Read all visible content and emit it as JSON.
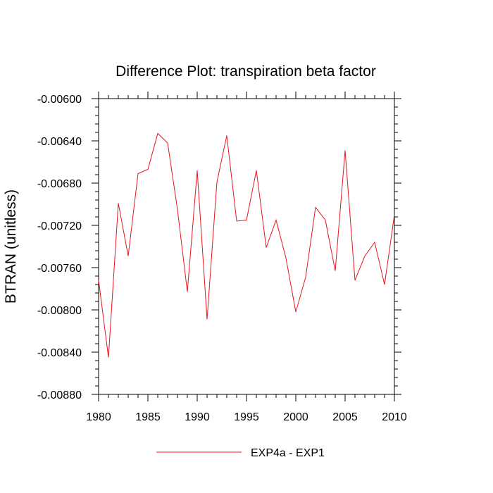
{
  "chart_data": {
    "type": "line",
    "title": "Difference Plot: transpiration beta factor",
    "xlabel": "",
    "ylabel": "BTRAN  (unitless)",
    "xlim": [
      1980,
      2010
    ],
    "ylim": [
      -0.0088,
      -0.006
    ],
    "x_ticks": [
      1980,
      1985,
      1990,
      1995,
      2000,
      2005,
      2010
    ],
    "x_tick_labels": [
      "1980",
      "1985",
      "1990",
      "1995",
      "2000",
      "2005",
      "2010"
    ],
    "y_ticks": [
      -0.006,
      -0.0064,
      -0.0068,
      -0.0072,
      -0.0076,
      -0.008,
      -0.0084,
      -0.0088
    ],
    "y_tick_labels": [
      "-0.00600",
      "-0.00640",
      "-0.00680",
      "-0.00720",
      "-0.00760",
      "-0.00800",
      "-0.00840",
      "-0.00880"
    ],
    "grid": false,
    "legend": "bottom-center",
    "x": [
      1980,
      1981,
      1982,
      1983,
      1984,
      1985,
      1986,
      1987,
      1988,
      1989,
      1990,
      1991,
      1992,
      1993,
      1994,
      1995,
      1996,
      1997,
      1998,
      1999,
      2000,
      2001,
      2002,
      2003,
      2004,
      2005,
      2006,
      2007,
      2008,
      2009,
      2010
    ],
    "series": [
      {
        "name": "EXP4a - EXP1",
        "color": "#e8141e",
        "values": [
          -0.00772,
          -0.00845,
          -0.00699,
          -0.00749,
          -0.00671,
          -0.00667,
          -0.00633,
          -0.00642,
          -0.00705,
          -0.00783,
          -0.00668,
          -0.00809,
          -0.00679,
          -0.00635,
          -0.00716,
          -0.00715,
          -0.00668,
          -0.00741,
          -0.00715,
          -0.00751,
          -0.00802,
          -0.00769,
          -0.00703,
          -0.00715,
          -0.00763,
          -0.00649,
          -0.00772,
          -0.00749,
          -0.00736,
          -0.00776,
          -0.0071
        ]
      }
    ]
  }
}
